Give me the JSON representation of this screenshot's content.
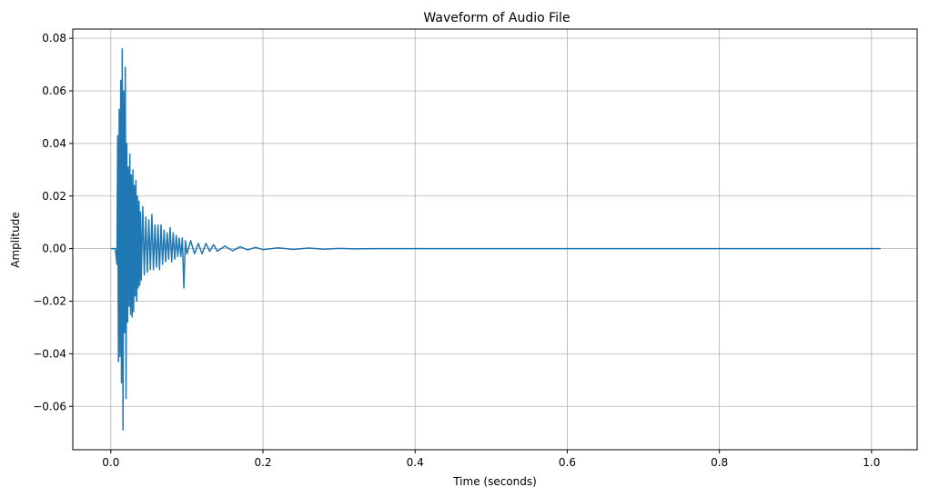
{
  "chart_data": {
    "type": "line",
    "title": "Waveform of Audio File",
    "xlabel": "Time (seconds)",
    "ylabel": "Amplitude",
    "xlim": [
      -0.05,
      1.06
    ],
    "ylim": [
      -0.0765,
      0.0835
    ],
    "x_ticks": [
      0.0,
      0.2,
      0.4,
      0.6,
      0.8,
      1.0
    ],
    "x_tick_labels": [
      "0.0",
      "0.2",
      "0.4",
      "0.6",
      "0.8",
      "1.0"
    ],
    "y_ticks": [
      -0.06,
      -0.04,
      -0.02,
      0.0,
      0.02,
      0.04,
      0.06,
      0.08
    ],
    "y_tick_labels": [
      "−0.06",
      "−0.04",
      "−0.02",
      "0.00",
      "0.02",
      "0.04",
      "0.06",
      "0.08"
    ],
    "grid": true,
    "line_color": "#1f77b4",
    "grid_color": "#b0b0b0",
    "series": [
      {
        "x": [
          0.0,
          0.006,
          0.008,
          0.009,
          0.01,
          0.011,
          0.012,
          0.013,
          0.014,
          0.015,
          0.016,
          0.017,
          0.018,
          0.019,
          0.02,
          0.021,
          0.022,
          0.023,
          0.024,
          0.025,
          0.026,
          0.027,
          0.028,
          0.029,
          0.03,
          0.031,
          0.032,
          0.033,
          0.034,
          0.035,
          0.036,
          0.037,
          0.038,
          0.039,
          0.04,
          0.042,
          0.044,
          0.046,
          0.048,
          0.05,
          0.052,
          0.054,
          0.056,
          0.058,
          0.06,
          0.062,
          0.064,
          0.066,
          0.068,
          0.07,
          0.072,
          0.074,
          0.076,
          0.078,
          0.08,
          0.082,
          0.084,
          0.086,
          0.088,
          0.09,
          0.092,
          0.094,
          0.096,
          0.098,
          0.1,
          0.105,
          0.11,
          0.115,
          0.12,
          0.125,
          0.13,
          0.135,
          0.14,
          0.15,
          0.16,
          0.17,
          0.18,
          0.19,
          0.2,
          0.22,
          0.24,
          0.26,
          0.28,
          0.3,
          0.32,
          0.35,
          0.4,
          1.012
        ],
        "y": [
          0.0,
          0.0,
          -0.006,
          0.043,
          -0.043,
          0.053,
          -0.041,
          0.064,
          -0.051,
          0.076,
          -0.069,
          0.06,
          -0.032,
          0.069,
          -0.057,
          0.04,
          -0.028,
          0.031,
          -0.022,
          0.036,
          -0.025,
          0.028,
          -0.026,
          0.03,
          -0.024,
          0.024,
          -0.018,
          0.026,
          -0.02,
          0.02,
          -0.015,
          0.018,
          -0.014,
          0.014,
          -0.012,
          0.016,
          -0.01,
          0.012,
          -0.009,
          0.011,
          -0.008,
          0.013,
          -0.008,
          0.009,
          -0.007,
          0.009,
          -0.008,
          0.009,
          -0.006,
          0.007,
          -0.005,
          0.006,
          -0.004,
          0.008,
          -0.005,
          0.006,
          -0.004,
          0.005,
          -0.003,
          0.004,
          -0.003,
          0.004,
          -0.015,
          0.003,
          -0.002,
          0.003,
          -0.002,
          0.002,
          -0.002,
          0.002,
          -0.001,
          0.0015,
          -0.001,
          0.001,
          -0.0008,
          0.0007,
          -0.0005,
          0.0005,
          -0.0004,
          0.0003,
          -0.0003,
          0.0002,
          -0.0002,
          0.0001,
          -0.0001,
          0.0,
          0.0,
          0.0
        ]
      }
    ]
  }
}
